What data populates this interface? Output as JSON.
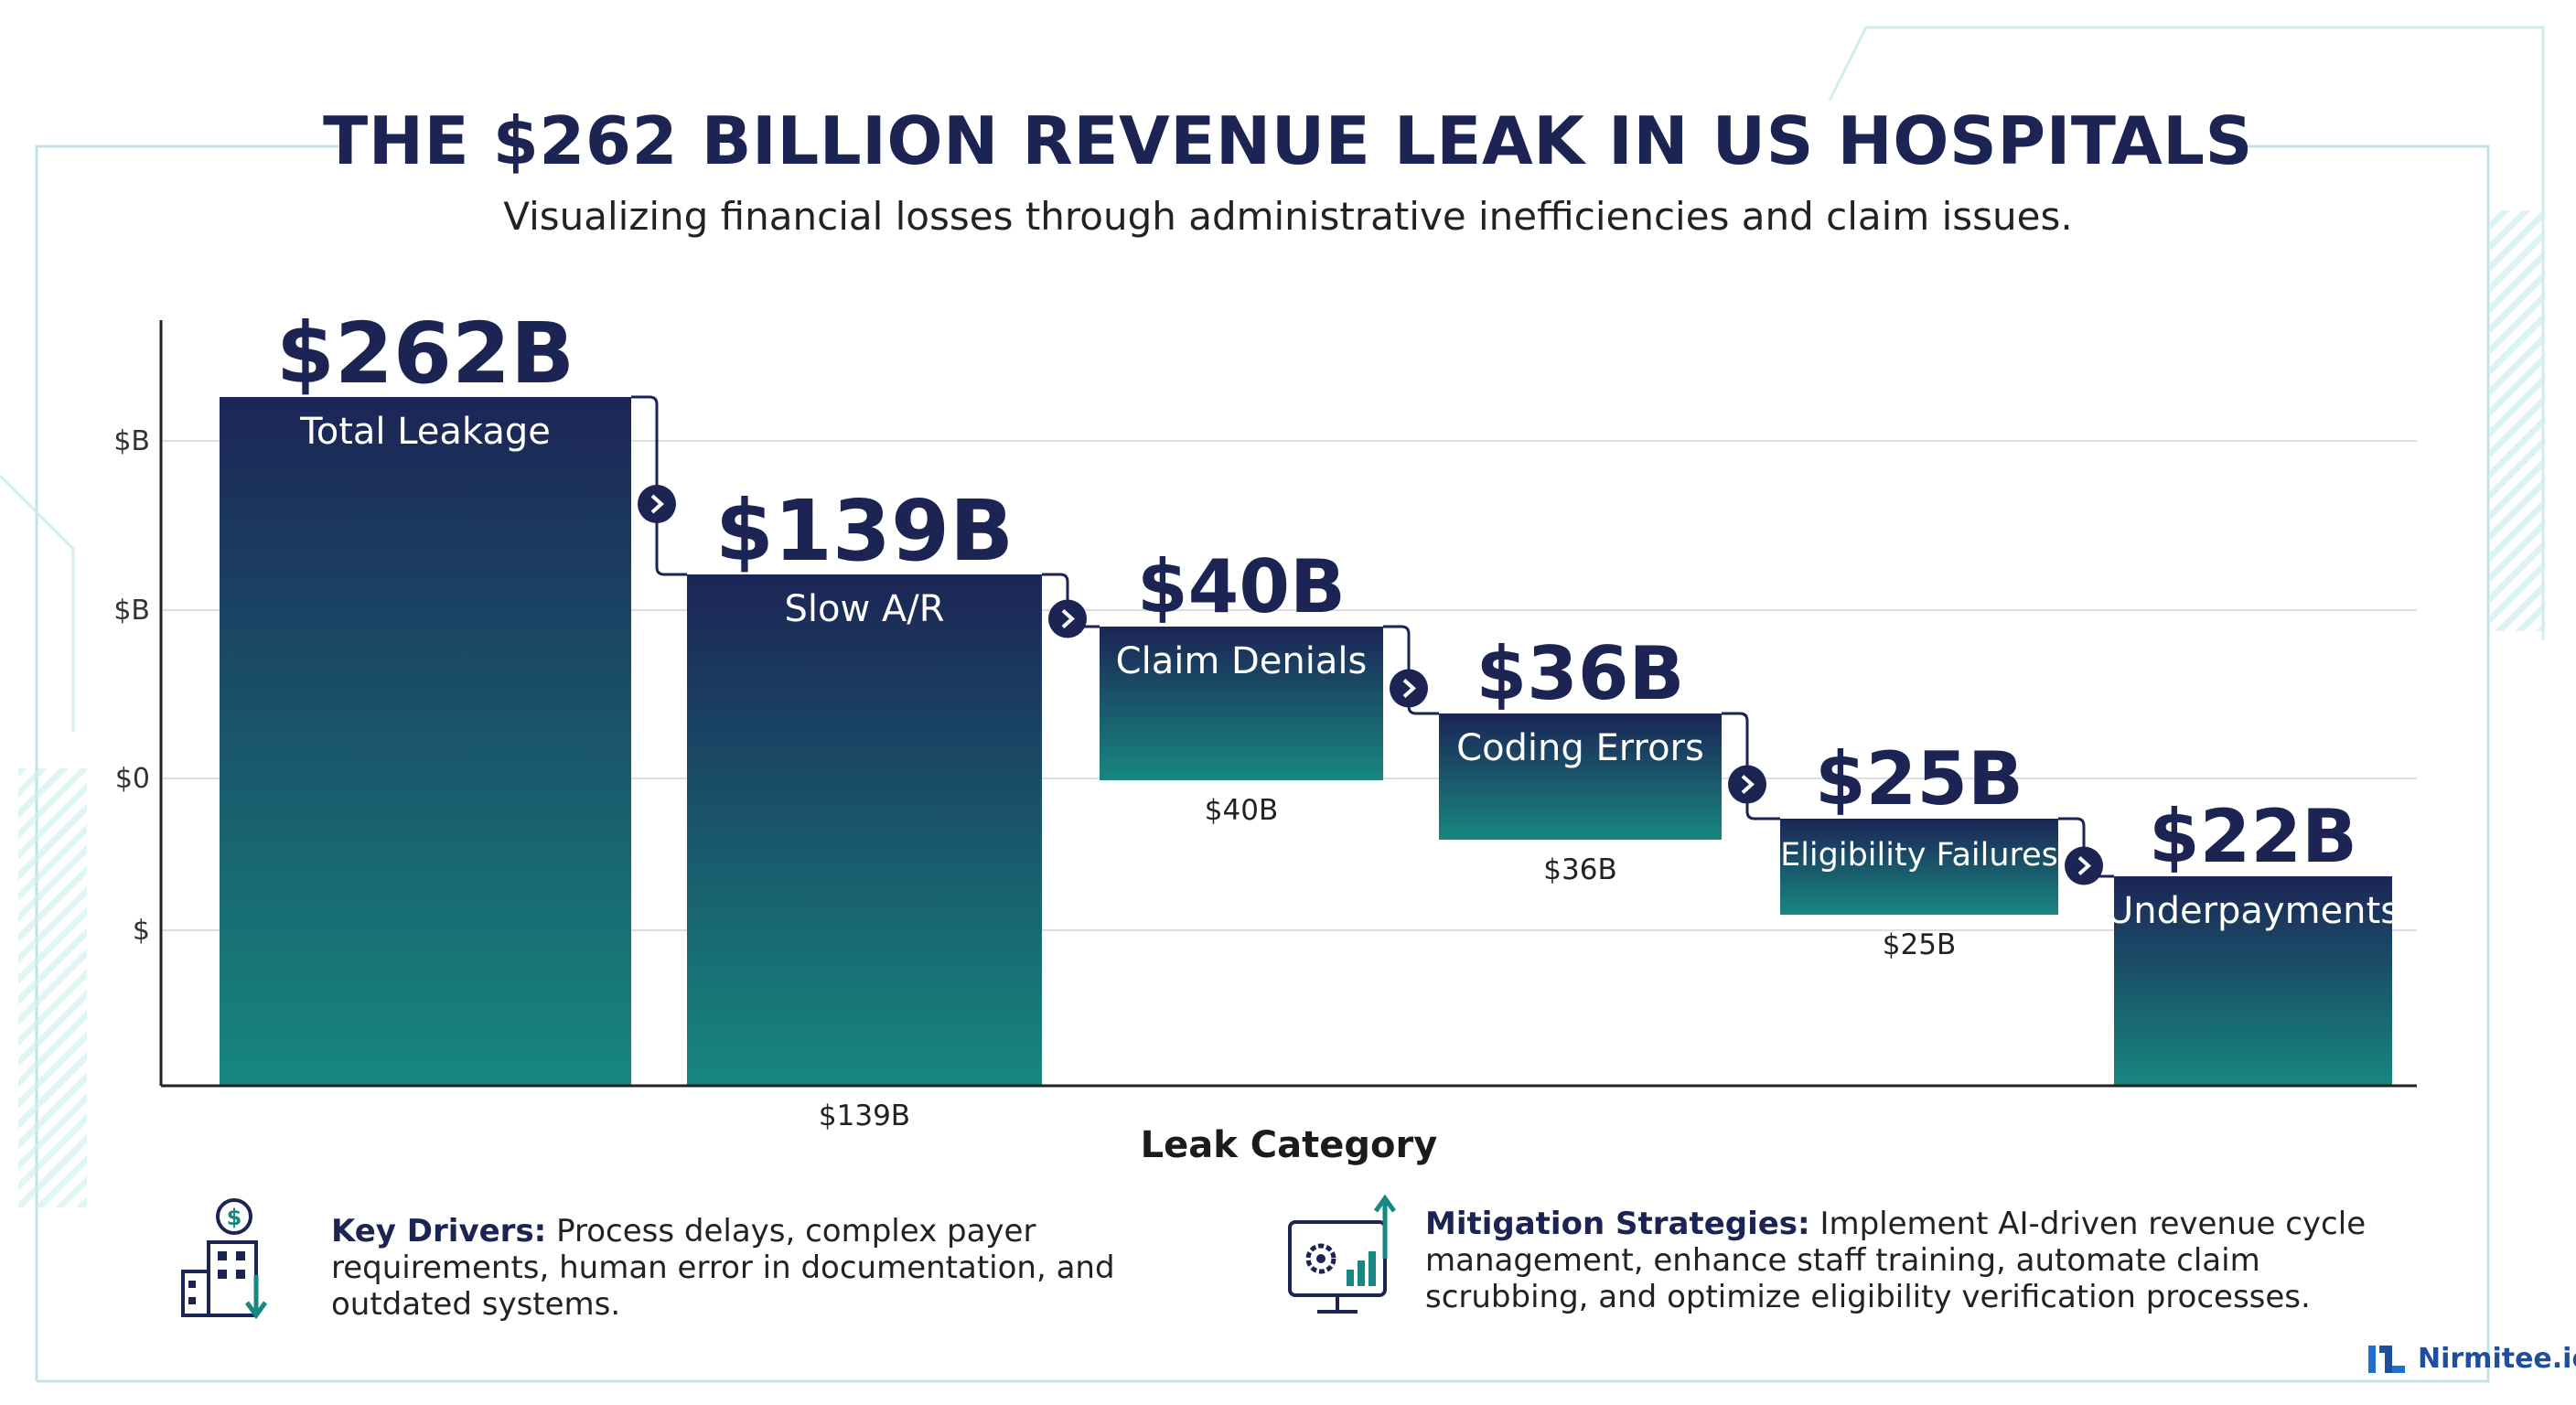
{
  "header": {
    "title": "THE $262 BILLION REVENUE LEAK IN US HOSPITALS",
    "subtitle": "Visualizing financial losses through administrative inefficiencies and claim issues."
  },
  "chart_data": {
    "type": "bar",
    "title": "THE $262 BILLION REVENUE LEAK IN US HOSPITALS",
    "subtitle": "Visualizing financial losses through administrative inefficiencies and claim issues.",
    "xlabel": "Leak Category",
    "ylabel": "",
    "y_tick_labels": [
      "$B",
      "$B",
      "$0",
      "$"
    ],
    "categories": [
      "Total Leakage",
      "Slow A/R",
      "Claim Denials",
      "Coding Errors",
      "Eligibility Failures",
      "Underpayments"
    ],
    "values": [
      262,
      139,
      40,
      36,
      25,
      22
    ],
    "value_labels": [
      "$262B",
      "$139B",
      "$40B",
      "$36B",
      "$25B",
      "$22B"
    ],
    "below_labels": [
      "",
      "$139B",
      "$40B",
      "$36B",
      "$25B",
      ""
    ],
    "colors": {
      "bar_top": "#1c2556",
      "bar_bottom": "#17877f",
      "title": "#1b2452",
      "connector": "#1b2452"
    },
    "grid": true,
    "legend": "none"
  },
  "footer": {
    "drivers_heading": "Key Drivers:",
    "drivers_text": "Process delays, complex payer requirements, human error in documentation, and outdated systems.",
    "drivers_icon": "hospital-revenue-down-icon",
    "mitigation_heading": "Mitigation Strategies:",
    "mitigation_text": "Implement AI-driven revenue cycle management, enhance staff training, automate claim scrubbing, and optimize eligibility verification processes.",
    "mitigation_icon": "monitor-gear-chart-icon"
  },
  "brand": {
    "name": "Nirmitee.io",
    "icon": "nirmitee-logo-icon"
  }
}
